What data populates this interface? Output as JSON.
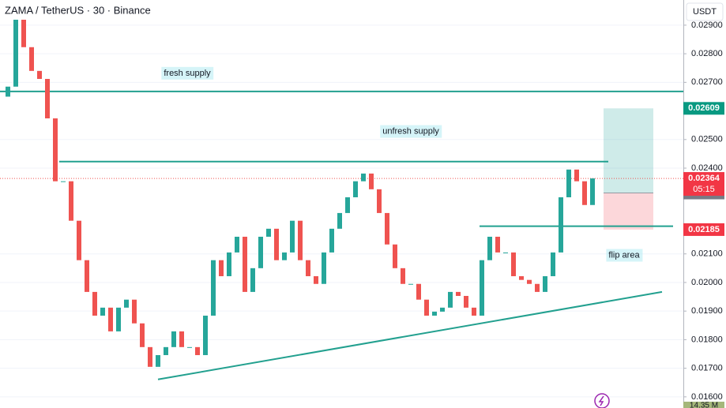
{
  "header": {
    "title": "ZAMA / TetherUS · 30 · Binance",
    "currency": "USDT"
  },
  "chart_data": {
    "type": "candlestick",
    "open": [
      0.0265,
      0.02685,
      0.02919,
      0.02823,
      0.0274,
      0.02712,
      0.02574,
      0.02354,
      0.02354,
      0.02216,
      0.02078,
      0.01967,
      0.01884,
      0.01912,
      0.01829,
      0.01912,
      0.0194,
      0.01857,
      0.01774,
      0.01705,
      0.01746,
      0.01774,
      0.01829,
      0.01774,
      0.01774,
      0.01746,
      0.01884,
      0.02078,
      0.02022,
      0.02105,
      0.0216,
      0.01967,
      0.0205,
      0.0216,
      0.02188,
      0.02078,
      0.02105,
      0.02216,
      0.02078,
      0.02022,
      0.01995,
      0.02105,
      0.02188,
      0.02243,
      0.02298,
      0.02354,
      0.02381,
      0.02326,
      0.02243,
      0.02133,
      0.0205,
      0.01995,
      0.01995,
      0.0194,
      0.01884,
      0.01898,
      0.01912,
      0.01967,
      0.01953,
      0.01912,
      0.01884,
      0.02078,
      0.0216,
      0.02105,
      0.02105,
      0.02022,
      0.02009,
      0.01995,
      0.01967,
      0.02022,
      0.02105,
      0.02298,
      0.02395,
      0.02354,
      0.02271
    ],
    "close": [
      0.02685,
      0.02919,
      0.02823,
      0.0274,
      0.02712,
      0.02574,
      0.02354,
      0.02354,
      0.02216,
      0.02078,
      0.01967,
      0.01884,
      0.01912,
      0.01829,
      0.01912,
      0.0194,
      0.01857,
      0.01774,
      0.01705,
      0.01746,
      0.01774,
      0.01829,
      0.01774,
      0.01774,
      0.01746,
      0.01884,
      0.02078,
      0.02022,
      0.02105,
      0.0216,
      0.01967,
      0.0205,
      0.0216,
      0.02188,
      0.02078,
      0.02105,
      0.02216,
      0.02078,
      0.02022,
      0.01995,
      0.02105,
      0.02188,
      0.02243,
      0.02298,
      0.02354,
      0.02381,
      0.02326,
      0.02243,
      0.02133,
      0.0205,
      0.01995,
      0.01995,
      0.0194,
      0.01884,
      0.01898,
      0.01912,
      0.01967,
      0.01953,
      0.01912,
      0.01884,
      0.02078,
      0.0216,
      0.02105,
      0.02105,
      0.02022,
      0.02009,
      0.01995,
      0.01967,
      0.02022,
      0.02105,
      0.02298,
      0.02395,
      0.02354,
      0.02271,
      0.02364
    ],
    "up_color": "#26a69a",
    "down_color": "#ef5350",
    "xlim": [
      -1,
      85.5
    ],
    "ylim": [
      0.01561,
      0.02988
    ],
    "yticks": [
      {
        "value": 0.029,
        "label": "0.02900"
      },
      {
        "value": 0.028,
        "label": "0.02800"
      },
      {
        "value": 0.027,
        "label": "0.02700"
      },
      {
        "value": 0.025,
        "label": "0.02500"
      },
      {
        "value": 0.024,
        "label": "0.02400"
      },
      {
        "value": 0.021,
        "label": "0.02100"
      },
      {
        "value": 0.02,
        "label": "0.02000"
      },
      {
        "value": 0.019,
        "label": "0.01900"
      },
      {
        "value": 0.018,
        "label": "0.01800"
      },
      {
        "value": 0.017,
        "label": "0.01700"
      },
      {
        "value": 0.016,
        "label": "0.01600"
      }
    ],
    "grid": true,
    "levels": [
      {
        "label": "fresh supply",
        "value": 0.02668
      },
      {
        "label": "unfresh supply",
        "value": 0.02423,
        "x": [
          6.5,
          76
        ]
      },
      {
        "label": "flip area",
        "value": 0.02197,
        "x": [
          59.7,
          84.2
        ]
      }
    ],
    "trendline": {
      "x": [
        19,
        82.8
      ],
      "values": [
        0.01661,
        0.01967
      ]
    },
    "position": {
      "x": [
        75.4,
        81.7
      ],
      "target": 0.02609,
      "entry": 0.02313,
      "stop": 0.02185
    },
    "last_price": 0.02364,
    "countdown": "05:15",
    "volume_label": "14.35 M"
  }
}
